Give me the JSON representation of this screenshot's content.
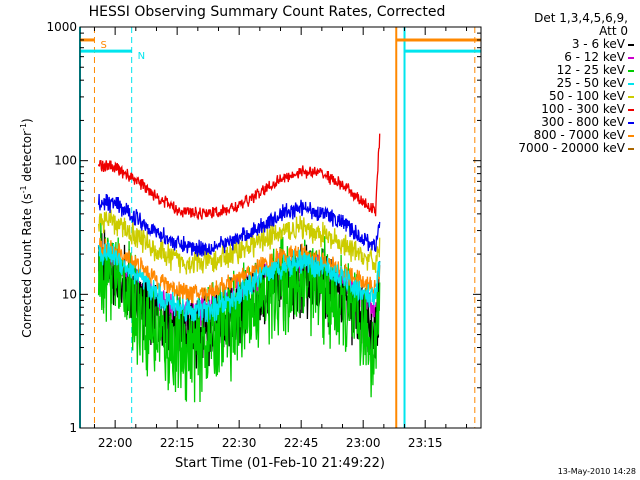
{
  "chart_data": {
    "type": "line",
    "title": "HESSI Observing Summary Count Rates, Corrected",
    "xlabel": "Start Time (01-Feb-10 21:49:22)",
    "ylabel": "Corrected Count Rate (s-1 detector-1)",
    "yscale": "log",
    "ylim": [
      1,
      1000
    ],
    "xlim": [
      "21:51:30",
      "23:28:30"
    ],
    "x_ticks": [
      "22:00",
      "22:15",
      "22:30",
      "22:45",
      "23:00",
      "23:15"
    ],
    "y_ticks": [
      "1",
      "10",
      "100",
      "1000"
    ],
    "grid": false,
    "legend_position": "right, outside plot",
    "legend_header": [
      "Det 1,3,4,5,6,9,",
      "Att 0"
    ],
    "time_points": [
      "21:56",
      "22:00",
      "22:05",
      "22:10",
      "22:15",
      "22:20",
      "22:25",
      "22:30",
      "22:35",
      "22:40",
      "22:45",
      "22:50",
      "22:55",
      "23:00",
      "23:03",
      "23:04"
    ],
    "series": [
      {
        "name": "3 - 6 keV",
        "color": "#000000",
        "values": [
          16,
          15,
          10,
          6.5,
          5.5,
          5.5,
          6,
          7.5,
          9.5,
          12,
          13,
          12,
          9,
          6,
          4.5,
          12
        ]
      },
      {
        "name": "6 - 12 keV",
        "color": "#cc00cc",
        "values": [
          17,
          16,
          12,
          9,
          7.5,
          7.5,
          8.5,
          10.5,
          13.5,
          16,
          17,
          15,
          12,
          9,
          7.5,
          16
        ]
      },
      {
        "name": "12 - 25 keV",
        "color": "#00cc00",
        "values": [
          17,
          15,
          8,
          5,
          4,
          4,
          5,
          6.5,
          9,
          11.5,
          13,
          11,
          7.5,
          5,
          4,
          11
        ]
      },
      {
        "name": "25 - 50 keV",
        "color": "#00e5ee",
        "values": [
          21,
          19,
          14,
          10,
          8,
          7.5,
          8,
          10,
          13,
          16,
          18,
          16,
          13,
          10,
          9,
          18
        ]
      },
      {
        "name": "50 - 100 keV",
        "color": "#cccc00",
        "values": [
          36,
          34,
          28,
          21,
          18,
          17,
          18,
          21,
          25,
          29,
          31,
          28,
          23,
          19,
          17,
          24
        ]
      },
      {
        "name": "100 - 300 keV",
        "color": "#ee0000",
        "values": [
          93,
          89,
          72,
          54,
          43,
          40,
          41,
          46,
          57,
          73,
          83,
          80,
          66,
          48,
          42,
          160
        ]
      },
      {
        "name": "300 - 800 keV",
        "color": "#0000ee",
        "values": [
          49,
          47,
          38,
          29,
          24,
          22,
          23,
          26,
          32,
          40,
          44,
          41,
          34,
          26,
          23,
          34
        ]
      },
      {
        "name": "800 - 7000 keV",
        "color": "#ff8800",
        "values": [
          23,
          21,
          17,
          13,
          11,
          10,
          11,
          13,
          16,
          19,
          20,
          18,
          15,
          12,
          11,
          16
        ]
      },
      {
        "name": "7000 - 20000 keV",
        "color": "#aa6600",
        "values": []
      }
    ],
    "flag_bars": [
      {
        "label": "S",
        "color": "#ff8800",
        "value": 800,
        "segments": [
          [
            "21:51:30",
            "21:55:00"
          ],
          [
            "23:08:00",
            "23:28:30"
          ]
        ]
      },
      {
        "label": "N",
        "color": "#00e5ee",
        "value": 660,
        "segments": [
          [
            "21:51:30",
            "22:04:00"
          ],
          [
            "23:10:00",
            "23:28:30"
          ]
        ]
      }
    ],
    "markers": [
      {
        "time": "21:51:30",
        "color": "#00e5ee",
        "style": "solid"
      },
      {
        "time": "21:55:00",
        "color": "#ff8800",
        "style": "dashed"
      },
      {
        "time": "22:04:00",
        "color": "#00e5ee",
        "style": "dashed"
      },
      {
        "time": "23:08:00",
        "color": "#ff8800",
        "style": "solid"
      },
      {
        "time": "23:10:00",
        "color": "#00e5ee",
        "style": "solid"
      },
      {
        "time": "23:27:00",
        "color": "#ff8800",
        "style": "dashed"
      }
    ]
  },
  "footer": {
    "timestamp": "13-May-2010 14:28"
  }
}
